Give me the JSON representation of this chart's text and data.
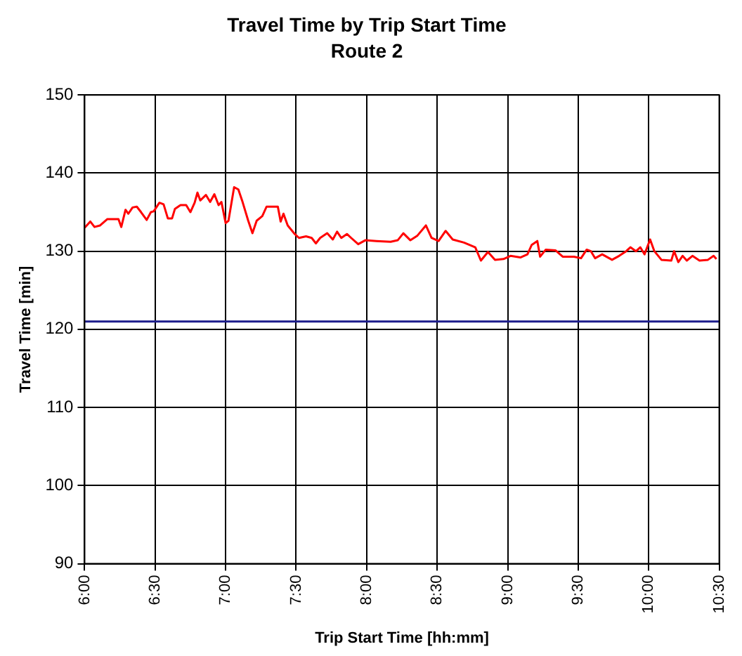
{
  "chart_data": {
    "type": "line",
    "title": "Travel Time by Trip Start Time",
    "subtitle": "Route 2",
    "xlabel": "Trip Start Time [hh:mm]",
    "ylabel": "Travel Time [min]",
    "xlim": [
      6,
      10.5
    ],
    "xticks": [
      {
        "value": 6,
        "label": "6:00"
      },
      {
        "value": 6.5,
        "label": "6:30"
      },
      {
        "value": 7,
        "label": "7:00"
      },
      {
        "value": 7.5,
        "label": "7:30"
      },
      {
        "value": 8,
        "label": "8:00"
      },
      {
        "value": 8.5,
        "label": "8:30"
      },
      {
        "value": 9,
        "label": "9:00"
      },
      {
        "value": 9.5,
        "label": "9:30"
      },
      {
        "value": 10,
        "label": "10:00"
      },
      {
        "value": 10.5,
        "label": "10:30"
      }
    ],
    "ylim": [
      90,
      150
    ],
    "yticks": [
      90,
      100,
      110,
      120,
      130,
      140,
      150
    ],
    "grid": true,
    "legend": false,
    "marker": "none",
    "line_style": "solid",
    "ref_lines": [
      {
        "axis": "y",
        "value": 121,
        "color": "#1c1c8c"
      }
    ],
    "series": [
      {
        "color": "#ff0000",
        "x": [
          6.0,
          6.04,
          6.07,
          6.11,
          6.16,
          6.24,
          6.26,
          6.29,
          6.31,
          6.34,
          6.37,
          6.4,
          6.44,
          6.47,
          6.49,
          6.53,
          6.56,
          6.59,
          6.62,
          6.64,
          6.68,
          6.72,
          6.75,
          6.78,
          6.8,
          6.82,
          6.86,
          6.89,
          6.92,
          6.95,
          6.97,
          7.0,
          7.02,
          7.06,
          7.09,
          7.12,
          7.16,
          7.19,
          7.22,
          7.26,
          7.29,
          7.34,
          7.37,
          7.39,
          7.41,
          7.44,
          7.49,
          7.52,
          7.57,
          7.61,
          7.64,
          7.67,
          7.72,
          7.76,
          7.79,
          7.82,
          7.86,
          7.89,
          7.94,
          7.99,
          8.07,
          8.17,
          8.22,
          8.26,
          8.31,
          8.36,
          8.42,
          8.46,
          8.51,
          8.56,
          8.61,
          8.69,
          8.77,
          8.81,
          8.86,
          8.91,
          8.97,
          9.02,
          9.09,
          9.14,
          9.17,
          9.21,
          9.23,
          9.27,
          9.34,
          9.39,
          9.47,
          9.52,
          9.56,
          9.59,
          9.62,
          9.67,
          9.74,
          9.79,
          9.84,
          9.87,
          9.91,
          9.94,
          9.97,
          10.01,
          10.04,
          10.09,
          10.16,
          10.18,
          10.21,
          10.24,
          10.27,
          10.31,
          10.36,
          10.42,
          10.46,
          10.48
        ],
        "values": [
          133.0,
          133.8,
          133.1,
          133.3,
          134.1,
          134.1,
          133.1,
          135.3,
          134.8,
          135.6,
          135.7,
          135.0,
          134.0,
          135.0,
          135.1,
          136.2,
          136.0,
          134.2,
          134.2,
          135.4,
          135.9,
          135.9,
          135.0,
          136.2,
          137.5,
          136.5,
          137.2,
          136.3,
          137.3,
          135.9,
          136.3,
          133.6,
          133.9,
          138.2,
          137.9,
          136.3,
          133.9,
          132.3,
          133.9,
          134.5,
          135.7,
          135.7,
          135.7,
          133.8,
          134.8,
          133.3,
          132.2,
          131.7,
          131.9,
          131.7,
          131.0,
          131.7,
          132.3,
          131.5,
          132.5,
          131.7,
          132.2,
          131.7,
          130.9,
          131.4,
          131.3,
          131.2,
          131.4,
          132.3,
          131.4,
          132.0,
          133.3,
          131.7,
          131.3,
          132.6,
          131.5,
          131.1,
          130.5,
          128.8,
          129.9,
          128.9,
          129.0,
          129.4,
          129.2,
          129.6,
          130.8,
          131.3,
          129.3,
          130.2,
          130.1,
          129.3,
          129.3,
          129.1,
          130.2,
          130.0,
          129.1,
          129.6,
          128.9,
          129.4,
          130.0,
          130.5,
          130.0,
          130.5,
          129.6,
          131.5,
          130.0,
          128.9,
          128.8,
          130.0,
          128.6,
          129.4,
          128.8,
          129.4,
          128.8,
          128.9,
          129.4,
          129.0
        ]
      }
    ]
  }
}
